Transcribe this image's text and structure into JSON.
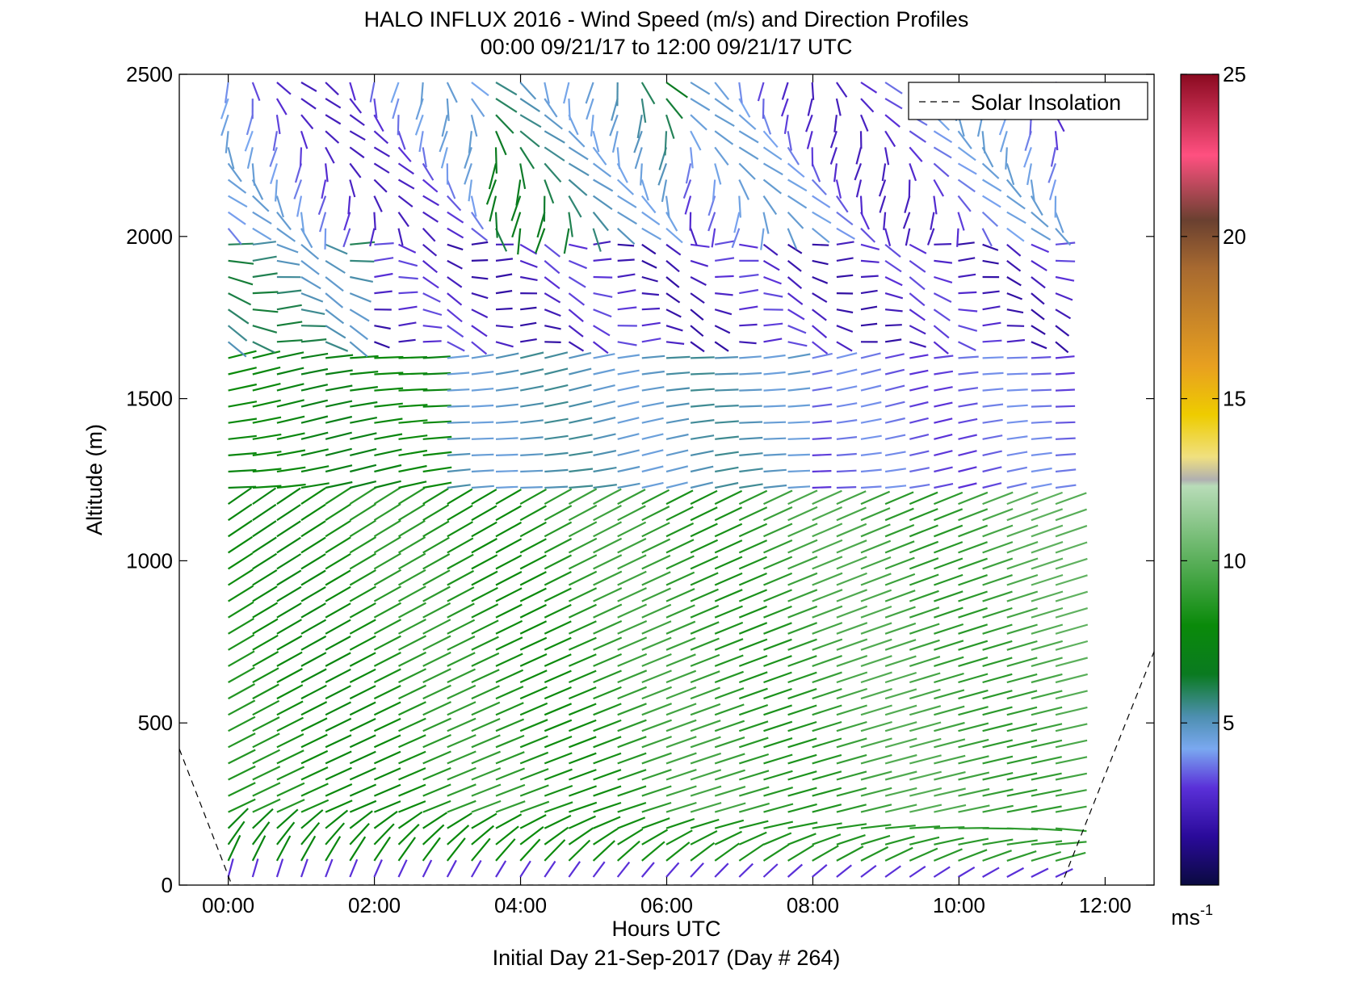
{
  "chart_data": {
    "type": "quiver",
    "title": "HALO INFLUX 2016 - Wind Speed (m/s) and Direction Profiles",
    "subtitle": "00:00 09/21/17 to 12:00 09/21/17  UTC",
    "xlabel": "Hours UTC",
    "ylabel": "Altitude (m)",
    "footer": "Initial Day 21-Sep-2017 (Day # 264)",
    "xlim": [
      -0.67,
      12.67
    ],
    "ylim": [
      0,
      2500
    ],
    "x_ticks": [
      {
        "value": 0,
        "label": "00:00"
      },
      {
        "value": 2,
        "label": "02:00"
      },
      {
        "value": 4,
        "label": "04:00"
      },
      {
        "value": 6,
        "label": "06:00"
      },
      {
        "value": 8,
        "label": "08:00"
      },
      {
        "value": 10,
        "label": "10:00"
      },
      {
        "value": 12,
        "label": "12:00"
      }
    ],
    "y_ticks": [
      {
        "value": 0,
        "label": "0"
      },
      {
        "value": 500,
        "label": "500"
      },
      {
        "value": 1000,
        "label": "1000"
      },
      {
        "value": 1500,
        "label": "1500"
      },
      {
        "value": 2000,
        "label": "2000"
      },
      {
        "value": 2500,
        "label": "2500"
      }
    ],
    "legend": {
      "entries": [
        "Solar Insolation"
      ],
      "placement": "top-right"
    },
    "colorbar": {
      "range": [
        0,
        25
      ],
      "ticks": [
        {
          "value": 5,
          "label": "5"
        },
        {
          "value": 10,
          "label": "10"
        },
        {
          "value": 15,
          "label": "15"
        },
        {
          "value": 20,
          "label": "20"
        },
        {
          "value": 25,
          "label": "25"
        }
      ],
      "unit_label": "ms",
      "unit_exponent": "-1",
      "stops": [
        {
          "v": 0,
          "c": "#0a0a40"
        },
        {
          "v": 1.5,
          "c": "#2a0a9a"
        },
        {
          "v": 3,
          "c": "#5a30d8"
        },
        {
          "v": 4.2,
          "c": "#7aa8f0"
        },
        {
          "v": 5.2,
          "c": "#4d8fb0"
        },
        {
          "v": 6.5,
          "c": "#0a7a20"
        },
        {
          "v": 8,
          "c": "#0a8a0a"
        },
        {
          "v": 10,
          "c": "#5aaf5a"
        },
        {
          "v": 12.3,
          "c": "#b8dcb8"
        },
        {
          "v": 12.5,
          "c": "#b0b0b0"
        },
        {
          "v": 13.2,
          "c": "#f0e080"
        },
        {
          "v": 14.5,
          "c": "#eecc00"
        },
        {
          "v": 16,
          "c": "#e8a020"
        },
        {
          "v": 19,
          "c": "#a86a30"
        },
        {
          "v": 20.5,
          "c": "#6a4030"
        },
        {
          "v": 22.5,
          "c": "#ff5080"
        },
        {
          "v": 25,
          "c": "#8a0a20"
        }
      ]
    },
    "quiver_grid": {
      "x_hours_start": 0.0,
      "x_hours_step": 0.333,
      "x_count": 35,
      "altitude_start_m": 25,
      "altitude_step_m": 50,
      "altitude_top_m": 2500
    },
    "wind_regimes": [
      {
        "alt_range_m": [
          0,
          200
        ],
        "speed_ms": 8.5,
        "direction": "southwest, veering to westerly"
      },
      {
        "alt_range_m": [
          200,
          1200
        ],
        "speed_ms": 8.5,
        "direction": "west-southwest"
      },
      {
        "alt_range_m": [
          1200,
          1650
        ],
        "speed_ms": 5.0,
        "direction": "westerly"
      },
      {
        "alt_range_m": [
          1650,
          2000
        ],
        "speed_ms": 2.5,
        "direction": "variable west/northwest"
      },
      {
        "alt_range_m": [
          2000,
          2500
        ],
        "speed_ms": 4.0,
        "direction": "northerly / variable"
      }
    ],
    "solar_insolation": {
      "x_hours": [
        -0.67,
        0.05,
        11.4,
        12.67
      ],
      "altitude_m": [
        420,
        0,
        0,
        720
      ]
    }
  }
}
